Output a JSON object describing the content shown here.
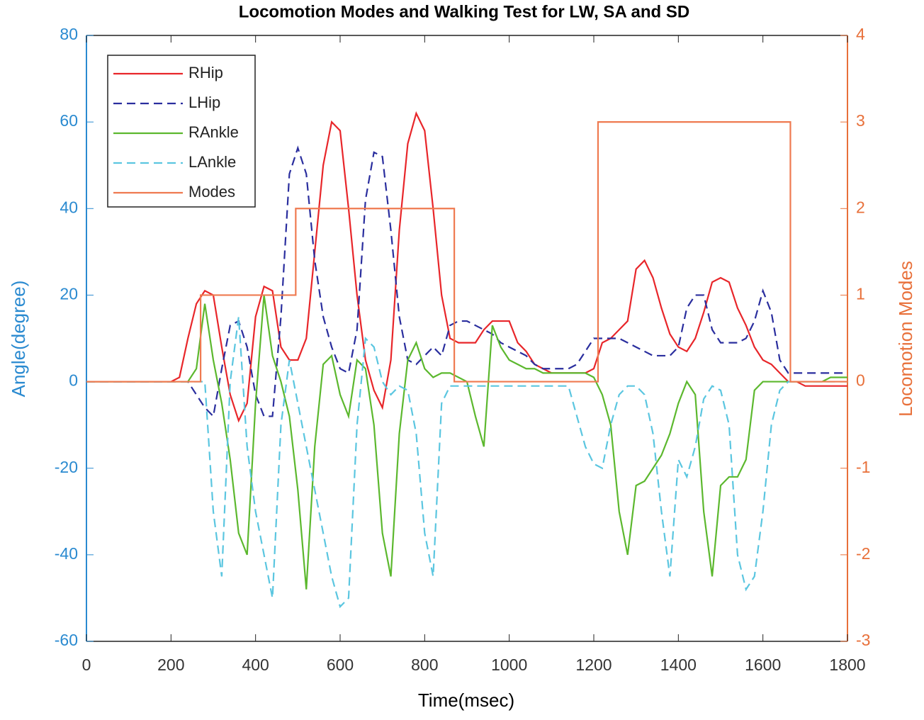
{
  "chart_data": {
    "type": "line",
    "title": "Locomotion Modes and Walking Test for LW, SA and SD",
    "x_label": "Time(msec)",
    "y_label": "Angle(degree)",
    "y2_label": "Locomotion Modes",
    "xlim": [
      0,
      1800
    ],
    "xticks": [
      0,
      200,
      400,
      600,
      800,
      1000,
      1200,
      1400,
      1600,
      1800
    ],
    "ylim": [
      -60,
      80
    ],
    "yticks": [
      -60,
      -40,
      -20,
      0,
      20,
      40,
      60,
      80
    ],
    "y2lim": [
      -3,
      4
    ],
    "y2ticks": [
      -3,
      -2,
      -1,
      0,
      1,
      2,
      3,
      4
    ],
    "grid": false,
    "legend": "upper left",
    "x": [
      0,
      20,
      40,
      60,
      80,
      100,
      120,
      140,
      160,
      180,
      200,
      220,
      240,
      260,
      280,
      300,
      320,
      340,
      360,
      380,
      400,
      420,
      440,
      460,
      480,
      500,
      520,
      540,
      560,
      580,
      600,
      620,
      640,
      660,
      680,
      700,
      720,
      740,
      760,
      780,
      800,
      820,
      840,
      860,
      880,
      900,
      920,
      940,
      960,
      980,
      1000,
      1020,
      1040,
      1060,
      1080,
      1100,
      1120,
      1140,
      1160,
      1180,
      1200,
      1220,
      1240,
      1260,
      1280,
      1300,
      1320,
      1340,
      1360,
      1380,
      1400,
      1420,
      1440,
      1460,
      1480,
      1500,
      1520,
      1540,
      1560,
      1580,
      1600,
      1620,
      1640,
      1660,
      1680,
      1700,
      1720,
      1740,
      1760,
      1780,
      1800
    ],
    "series": [
      {
        "name": "RHip",
        "color": "#e8262a",
        "dash": false,
        "values": [
          0,
          0,
          0,
          0,
          0,
          0,
          0,
          0,
          0,
          0,
          0,
          1,
          10,
          18,
          21,
          20,
          8,
          -3,
          -9,
          -5,
          15,
          22,
          21,
          8,
          5,
          5,
          10,
          30,
          50,
          60,
          58,
          40,
          20,
          5,
          -2,
          -6,
          5,
          35,
          55,
          62,
          58,
          40,
          20,
          10,
          9,
          9,
          9,
          12,
          14,
          14,
          14,
          9,
          7,
          4,
          3,
          2,
          2,
          2,
          2,
          2,
          3,
          9,
          10,
          12,
          14,
          26,
          28,
          24,
          17,
          11,
          8,
          7,
          10,
          16,
          23,
          24,
          23,
          17,
          13,
          8,
          5,
          4,
          2,
          0,
          0,
          -1,
          -1,
          -1,
          -1,
          -1,
          -1
        ]
      },
      {
        "name": "LHip",
        "color": "#2a2e9e",
        "dash": true,
        "values": [
          0,
          0,
          0,
          0,
          0,
          0,
          0,
          0,
          0,
          0,
          0,
          0,
          0,
          -3,
          -6,
          -8,
          3,
          13,
          14,
          8,
          -3,
          -8,
          -8,
          15,
          48,
          54,
          48,
          28,
          15,
          8,
          3,
          2,
          12,
          42,
          53,
          52,
          35,
          15,
          5,
          4,
          6,
          8,
          6,
          13,
          14,
          14,
          13,
          12,
          11,
          9,
          8,
          7,
          6,
          4,
          3,
          3,
          3,
          3,
          4,
          7,
          10,
          10,
          10,
          10,
          9,
          8,
          7,
          6,
          6,
          6,
          8,
          17,
          20,
          20,
          12,
          9,
          9,
          9,
          10,
          14,
          21,
          16,
          5,
          2,
          2,
          2,
          2,
          2,
          2,
          2,
          2
        ]
      },
      {
        "name": "RAnkle",
        "color": "#5cb82e",
        "dash": false,
        "values": [
          0,
          0,
          0,
          0,
          0,
          0,
          0,
          0,
          0,
          0,
          0,
          0,
          0,
          3,
          18,
          5,
          -5,
          -18,
          -35,
          -40,
          -5,
          20,
          6,
          0,
          -8,
          -25,
          -48,
          -15,
          4,
          6,
          -3,
          -8,
          5,
          3,
          -10,
          -35,
          -45,
          -12,
          5,
          9,
          3,
          1,
          2,
          2,
          1,
          0,
          -8,
          -15,
          13,
          8,
          5,
          4,
          3,
          3,
          2,
          2,
          2,
          2,
          2,
          2,
          1,
          -3,
          -10,
          -30,
          -40,
          -24,
          -23,
          -20,
          -17,
          -12,
          -5,
          0,
          -3,
          -30,
          -45,
          -24,
          -22,
          -22,
          -18,
          -2,
          0,
          0,
          0,
          0,
          0,
          0,
          0,
          0,
          1,
          1,
          1
        ]
      },
      {
        "name": "LAnkle",
        "color": "#5bc6e0",
        "dash": true,
        "values": [
          0,
          0,
          0,
          0,
          0,
          0,
          0,
          0,
          0,
          0,
          0,
          0,
          0,
          0,
          0,
          -30,
          -45,
          0,
          15,
          -15,
          -30,
          -40,
          -50,
          -10,
          5,
          -5,
          -15,
          -25,
          -35,
          -45,
          -52,
          -50,
          -10,
          10,
          8,
          0,
          -3,
          -1,
          -2,
          -12,
          -35,
          -45,
          -5,
          -1,
          -1,
          -1,
          -1,
          -1,
          -1,
          -1,
          -1,
          -1,
          -1,
          -1,
          -1,
          -1,
          -1,
          -1,
          -8,
          -15,
          -19,
          -20,
          -10,
          -3,
          -1,
          -1,
          -3,
          -12,
          -30,
          -45,
          -18,
          -22,
          -15,
          -4,
          -1,
          -2,
          -10,
          -40,
          -48,
          -45,
          -30,
          -10,
          -2,
          0,
          0,
          0,
          0,
          0,
          0,
          0,
          0
        ]
      },
      {
        "name": "Modes",
        "color": "#ef7a50",
        "dash": false,
        "axis": "y2",
        "x": [
          0,
          270,
          270,
          495,
          495,
          870,
          870,
          1210,
          1210,
          1665,
          1665,
          1800
        ],
        "values": [
          0,
          0,
          1,
          1,
          2,
          2,
          0,
          0,
          3,
          3,
          0,
          0
        ]
      }
    ]
  }
}
